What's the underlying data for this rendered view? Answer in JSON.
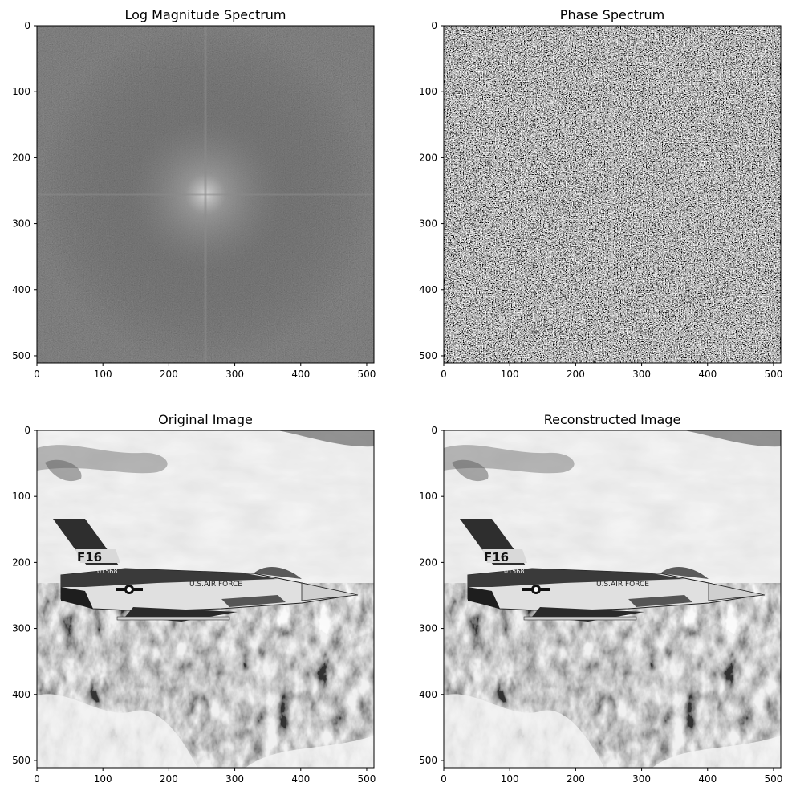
{
  "chart_data": [
    {
      "type": "heatmap",
      "title": "Log Magnitude Spectrum",
      "content": "log-magnitude",
      "colormap": "gray",
      "xlim": [
        0,
        511
      ],
      "ylim": [
        511,
        0
      ],
      "xticks": [
        0,
        100,
        200,
        300,
        400,
        500
      ],
      "yticks": [
        0,
        100,
        200,
        300,
        400,
        500
      ]
    },
    {
      "type": "heatmap",
      "title": "Phase Spectrum",
      "content": "phase",
      "colormap": "gray",
      "xlim": [
        0,
        511
      ],
      "ylim": [
        511,
        0
      ],
      "xticks": [
        0,
        100,
        200,
        300,
        400,
        500
      ],
      "yticks": [
        0,
        100,
        200,
        300,
        400,
        500
      ]
    },
    {
      "type": "heatmap",
      "title": "Original Image",
      "content": "photo",
      "colormap": "gray",
      "xlim": [
        0,
        511
      ],
      "ylim": [
        511,
        0
      ],
      "xticks": [
        0,
        100,
        200,
        300,
        400,
        500
      ],
      "yticks": [
        0,
        100,
        200,
        300,
        400,
        500
      ],
      "annotations": [
        "F16",
        "01568",
        "U.S.AIR FORCE"
      ]
    },
    {
      "type": "heatmap",
      "title": "Reconstructed Image",
      "content": "photo",
      "colormap": "gray",
      "xlim": [
        0,
        511
      ],
      "ylim": [
        511,
        0
      ],
      "xticks": [
        0,
        100,
        200,
        300,
        400,
        500
      ],
      "yticks": [
        0,
        100,
        200,
        300,
        400,
        500
      ],
      "annotations": [
        "F16",
        "01568",
        "U.S.AIR FORCE"
      ]
    }
  ]
}
